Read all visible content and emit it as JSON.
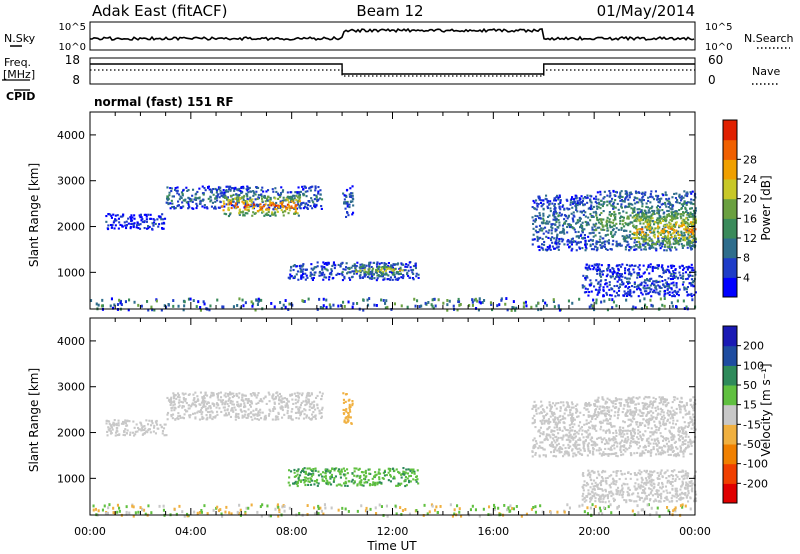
{
  "header": {
    "station": "Adak East (fitACF)",
    "beam": "Beam 12",
    "date": "01/May/2014"
  },
  "nsky_panel": {
    "label": "N.Sky",
    "right_label": "N.Search",
    "ticks_left": [
      "10^5",
      "10^0"
    ],
    "ticks_right": [
      "10^5",
      "10^0"
    ]
  },
  "freq_panel": {
    "label_line1": "Freq.",
    "label_line2": "[MHz]",
    "right_label": "Nave",
    "ticks_left": [
      "18",
      "8"
    ],
    "ticks_right": [
      "60",
      "0"
    ],
    "cpid_label": "CPID",
    "cpid_text": "normal (fast) 151 RF"
  },
  "colors": {
    "power": [
      "#0000ff",
      "#1e3cc8",
      "#2e6d8c",
      "#3a8a5a",
      "#6aa040",
      "#c8c828",
      "#f0a000",
      "#f06000",
      "#e02000"
    ],
    "velocity": [
      "#e00000",
      "#f04000",
      "#f08000",
      "#f0b040",
      "#c8c8c8",
      "#60c040",
      "#2e8a5a",
      "#1e4ca0",
      "#1a1ab4"
    ]
  },
  "chart_data": [
    {
      "type": "heatmap",
      "name": "power",
      "ylabel": "Slant Range [km]",
      "y_ticks": [
        "1000",
        "2000",
        "3000",
        "4000"
      ],
      "y_values": [
        1000,
        2000,
        3000,
        4000
      ],
      "ylim": [
        200,
        4500
      ],
      "x_ticks": [
        "00:00",
        "04:00",
        "08:00",
        "12:00",
        "16:00",
        "20:00",
        "00:00"
      ],
      "x_values": [
        0,
        4,
        8,
        12,
        16,
        20,
        24
      ],
      "xlim": [
        0,
        24
      ],
      "colorbar_label": "Power [dB]",
      "colorbar_ticks": [
        "4",
        "8",
        "12",
        "16",
        "20",
        "24",
        "28"
      ],
      "regions": [
        {
          "t": [
            0.6,
            3.0
          ],
          "r": [
            1950,
            2300
          ],
          "level": 0.15
        },
        {
          "t": [
            3.0,
            9.2
          ],
          "r": [
            2400,
            2900
          ],
          "level": 0.3
        },
        {
          "t": [
            5.2,
            8.3
          ],
          "r": [
            2250,
            2700
          ],
          "level": 0.85
        },
        {
          "t": [
            10.0,
            10.4
          ],
          "r": [
            2200,
            2900
          ],
          "level": 0.25
        },
        {
          "t": [
            7.8,
            13.0
          ],
          "r": [
            850,
            1250
          ],
          "level": 0.25
        },
        {
          "t": [
            10.4,
            12.4
          ],
          "r": [
            950,
            1200
          ],
          "level": 0.6
        },
        {
          "t": [
            17.5,
            20.0
          ],
          "r": [
            1500,
            2700
          ],
          "level": 0.3
        },
        {
          "t": [
            20.0,
            24.0
          ],
          "r": [
            1500,
            2800
          ],
          "level": 0.45
        },
        {
          "t": [
            21.5,
            24.0
          ],
          "r": [
            1550,
            2350
          ],
          "level": 0.75
        },
        {
          "t": [
            19.5,
            24.0
          ],
          "r": [
            500,
            1200
          ],
          "level": 0.2
        }
      ]
    },
    {
      "type": "heatmap",
      "name": "velocity",
      "ylabel": "Slant Range [km]",
      "y_ticks": [
        "1000",
        "2000",
        "3000",
        "4000"
      ],
      "y_values": [
        1000,
        2000,
        3000,
        4000
      ],
      "ylim": [
        200,
        4500
      ],
      "xlabel": "Time UT",
      "x_ticks": [
        "00:00",
        "04:00",
        "08:00",
        "12:00",
        "16:00",
        "20:00",
        "00:00"
      ],
      "x_values": [
        0,
        4,
        8,
        12,
        16,
        20,
        24
      ],
      "xlim": [
        0,
        24
      ],
      "colorbar_label": "Velocity [m s⁻¹]",
      "colorbar_ticks": [
        "200",
        "100",
        "50",
        "15",
        "-15",
        "-50",
        "-100",
        "-200"
      ],
      "regions": [
        {
          "t": [
            0.6,
            3.0
          ],
          "r": [
            1950,
            2300
          ],
          "velocity": 0
        },
        {
          "t": [
            3.0,
            9.2
          ],
          "r": [
            2300,
            2900
          ],
          "velocity": 0
        },
        {
          "t": [
            10.0,
            10.4
          ],
          "r": [
            2200,
            2900
          ],
          "velocity": -30
        },
        {
          "t": [
            7.8,
            13.0
          ],
          "r": [
            850,
            1250
          ],
          "velocity": 45
        },
        {
          "t": [
            17.5,
            20.0
          ],
          "r": [
            1500,
            2700
          ],
          "velocity": 0
        },
        {
          "t": [
            20.0,
            24.0
          ],
          "r": [
            1500,
            2800
          ],
          "velocity": 0
        },
        {
          "t": [
            19.5,
            24.0
          ],
          "r": [
            500,
            1200
          ],
          "velocity": 0
        }
      ]
    }
  ]
}
